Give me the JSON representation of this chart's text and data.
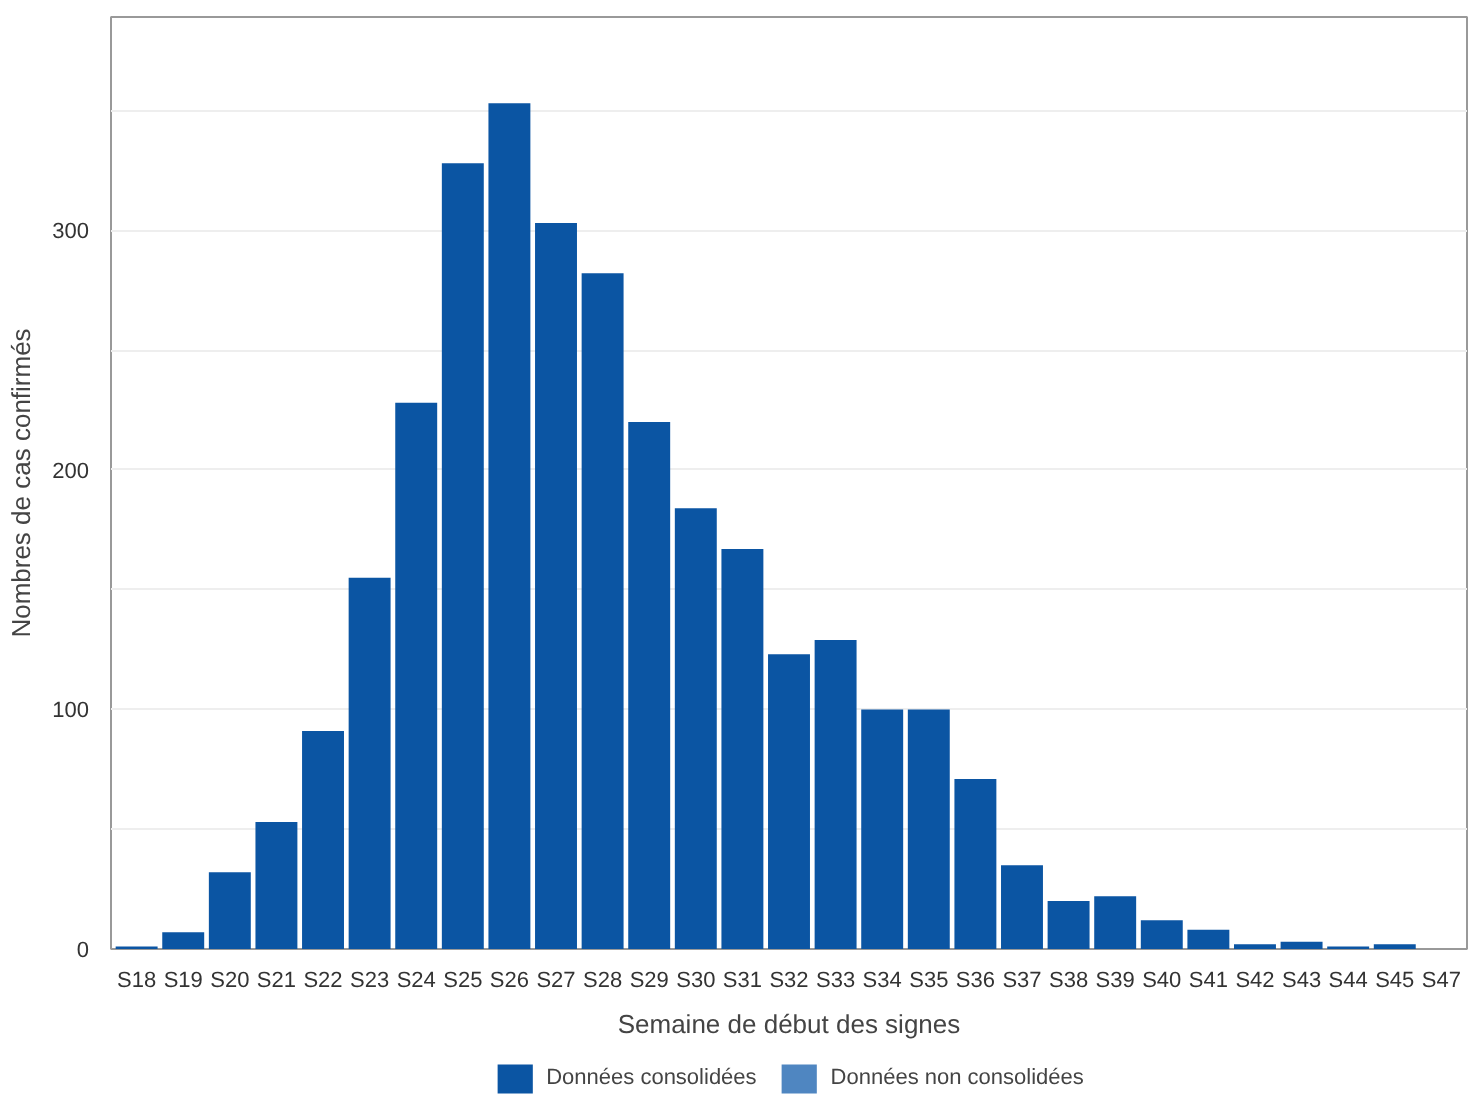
{
  "chart_data": {
    "type": "bar",
    "xlabel": "Semaine de début des signes",
    "ylabel": "Nombres de cas confirmés",
    "categories": [
      "S18",
      "S19",
      "S20",
      "S21",
      "S22",
      "S23",
      "S24",
      "S25",
      "S26",
      "S27",
      "S28",
      "S29",
      "S30",
      "S31",
      "S32",
      "S33",
      "S34",
      "S35",
      "S36",
      "S37",
      "S38",
      "S39",
      "S40",
      "S41",
      "S42",
      "S43",
      "S44",
      "S45",
      "S47"
    ],
    "series": [
      {
        "name": "Données consolidées",
        "color": "#0b55a3",
        "values": [
          1,
          7,
          32,
          53,
          91,
          155,
          228,
          328,
          353,
          303,
          282,
          220,
          184,
          167,
          123,
          129,
          100,
          100,
          71,
          35,
          20,
          22,
          12,
          8,
          2,
          3,
          1,
          2,
          0
        ]
      },
      {
        "name": "Données non consolidées",
        "color": "#4f86c1",
        "values": [
          null,
          null,
          null,
          null,
          null,
          null,
          null,
          null,
          null,
          null,
          null,
          null,
          null,
          null,
          null,
          null,
          null,
          null,
          null,
          null,
          null,
          null,
          null,
          null,
          null,
          null,
          null,
          null,
          null
        ]
      }
    ],
    "ylim": [
      0,
      389
    ],
    "yticks": [
      0,
      {
        "value": 50,
        "label": null
      },
      100,
      {
        "value": 150,
        "label": null
      },
      200,
      {
        "value": 250,
        "label": null
      },
      300,
      {
        "value": 350,
        "label": null
      }
    ],
    "grid": "y",
    "legend": "bottom"
  }
}
